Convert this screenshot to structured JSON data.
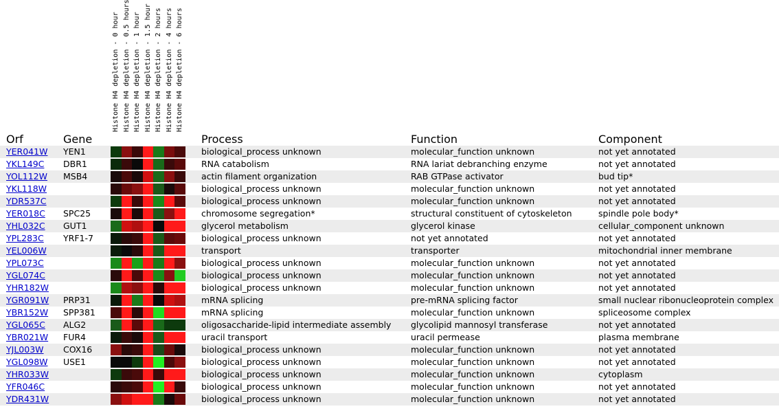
{
  "headers": {
    "orf": "Orf",
    "gene": "Gene",
    "process": "Process",
    "function": "Function",
    "component": "Component"
  },
  "conditions": [
    "Histone H4 depletion - 0 hour",
    "Histone H4 depletion - 0.5 hours",
    "Histone H4 depletion - 1 hour",
    "Histone H4 depletion - 1.5 hour",
    "Histone H4 depletion - 2 hours",
    "Histone H4 depletion - 4 hours",
    "Histone H4 depletion - 6 hours"
  ],
  "rows": [
    {
      "orf": "YER041W",
      "gene": "YEN1",
      "process": "biological_process unknown",
      "function": "molecular_function unknown",
      "component": "not yet annotated",
      "heat": [
        "#0d3a0d",
        "#8a1010",
        "#3a0a0a",
        "#ff1a1a",
        "#1a7a1a",
        "#7a0d0d",
        "#4a0a0a"
      ]
    },
    {
      "orf": "YKL149C",
      "gene": "DBR1",
      "process": "RNA catabolism",
      "function": "RNA lariat debranching enzyme",
      "component": "not yet annotated",
      "heat": [
        "#0a2a0a",
        "#3a0a0a",
        "#0a0a0a",
        "#ff1a1a",
        "#1a6a1a",
        "#3a0a0a",
        "#5a0a0a"
      ]
    },
    {
      "orf": "YOL112W",
      "gene": "MSB4",
      "process": "actin filament organization",
      "function": "RAB GTPase activator",
      "component": "bud tip*",
      "heat": [
        "#1a0a0a",
        "#4a0a0a",
        "#1a0a0a",
        "#d01010",
        "#1a6a1a",
        "#8a1010",
        "#3a0a0a"
      ]
    },
    {
      "orf": "YKL118W",
      "gene": "",
      "process": "biological_process unknown",
      "function": "molecular_function unknown",
      "component": "not yet annotated",
      "heat": [
        "#2a0a0a",
        "#6a0a0a",
        "#8a1010",
        "#ff1a1a",
        "#1a5a1a",
        "#1a0a0a",
        "#5a0a0a"
      ]
    },
    {
      "orf": "YDR537C",
      "gene": "",
      "process": "biological_process unknown",
      "function": "molecular_function unknown",
      "component": "not yet annotated",
      "heat": [
        "#0d3a0d",
        "#ff1a1a",
        "#3a0a0a",
        "#ff1a1a",
        "#1a8a1a",
        "#ff1a1a",
        "#5a0a0a"
      ]
    },
    {
      "orf": "YER018C",
      "gene": "SPC25",
      "process": "chromosome segregation*",
      "function": "structural constituent of cytoskeleton",
      "component": "spindle pole body*",
      "heat": [
        "#1a0a0a",
        "#ff1a1a",
        "#1a0a0a",
        "#ff1a1a",
        "#1a5a1a",
        "#8a1010",
        "#ff1a1a"
      ]
    },
    {
      "orf": "YHL032C",
      "gene": "GUT1",
      "process": "glycerol metabolism",
      "function": "glycerol kinase",
      "component": "cellular_component unknown",
      "heat": [
        "#1a6a1a",
        "#d01010",
        "#b01010",
        "#ff1a1a",
        "#0a0a0a",
        "#ff1a1a",
        "#ff1a1a"
      ]
    },
    {
      "orf": "YPL283C",
      "gene": "YRF1-7",
      "process": "biological_process unknown",
      "function": "not yet annotated",
      "component": "not yet annotated",
      "heat": [
        "#0a1a0a",
        "#2a0a0a",
        "#3a0a0a",
        "#ff1a1a",
        "#1a5a1a",
        "#5a0a0a",
        "#6a0a0a"
      ]
    },
    {
      "orf": "YEL006W",
      "gene": "",
      "process": "transport",
      "function": "transporter",
      "component": "mitochondrial inner membrane",
      "heat": [
        "#0a1a0a",
        "#0a0a0a",
        "#2a0a0a",
        "#ff1a1a",
        "#1a5a1a",
        "#ff1a1a",
        "#ff1a1a"
      ]
    },
    {
      "orf": "YPL073C",
      "gene": "",
      "process": "biological_process unknown",
      "function": "molecular_function unknown",
      "component": "not yet annotated",
      "heat": [
        "#1a8a1a",
        "#ff1a1a",
        "#1aa01a",
        "#ff1a1a",
        "#1a7a1a",
        "#ff1a1a",
        "#8a1010"
      ]
    },
    {
      "orf": "YGL074C",
      "gene": "",
      "process": "biological_process unknown",
      "function": "molecular_function unknown",
      "component": "not yet annotated",
      "heat": [
        "#2a0a0a",
        "#ff1a1a",
        "#4a0a0a",
        "#ff1a1a",
        "#1a8a1a",
        "#8a1010",
        "#22cc22"
      ]
    },
    {
      "orf": "YHR182W",
      "gene": "",
      "process": "biological_process unknown",
      "function": "molecular_function unknown",
      "component": "not yet annotated",
      "heat": [
        "#1a8a1a",
        "#b01010",
        "#8a1010",
        "#ff1a1a",
        "#2a0a0a",
        "#ff1a1a",
        "#ff1a1a"
      ]
    },
    {
      "orf": "YGR091W",
      "gene": "PRP31",
      "process": "mRNA splicing",
      "function": "pre-mRNA splicing factor",
      "component": "small nuclear ribonucleoprotein complex",
      "heat": [
        "#0a1a0a",
        "#ff1a1a",
        "#1a7a1a",
        "#ff1a1a",
        "#0a0a0a",
        "#d01010",
        "#b01010"
      ]
    },
    {
      "orf": "YBR152W",
      "gene": "SPP381",
      "process": "mRNA splicing",
      "function": "molecular_function unknown",
      "component": "spliceosome complex",
      "heat": [
        "#4a0a0a",
        "#ff1a1a",
        "#2a0a0a",
        "#ff1a1a",
        "#22dd22",
        "#ff1a1a",
        "#ff1a1a"
      ]
    },
    {
      "orf": "YGL065C",
      "gene": "ALG2",
      "process": "oligosaccharide-lipid intermediate assembly",
      "function": "glycolipid mannosyl transferase",
      "component": "not yet annotated",
      "heat": [
        "#1a5a1a",
        "#ff1a1a",
        "#5a0a0a",
        "#ff1a1a",
        "#1a6a1a",
        "#0d3a0d",
        "#0d3a0d"
      ]
    },
    {
      "orf": "YBR021W",
      "gene": "FUR4",
      "process": "uracil transport",
      "function": "uracil permease",
      "component": "plasma membrane",
      "heat": [
        "#0a1a0a",
        "#3a0a0a",
        "#1a0a0a",
        "#ff1a1a",
        "#1a5a1a",
        "#ff1a1a",
        "#ff1a1a"
      ]
    },
    {
      "orf": "YJL003W",
      "gene": "COX16",
      "process": "biological_process unknown",
      "function": "molecular_function unknown",
      "component": "not yet annotated",
      "heat": [
        "#8a1010",
        "#2a0a0a",
        "#3a0a0a",
        "#ff1a1a",
        "#1a4a1a",
        "#6a0a0a",
        "#1a0a0a"
      ]
    },
    {
      "orf": "YGL098W",
      "gene": "USE1",
      "process": "biological_process unknown",
      "function": "molecular_function unknown",
      "component": "not yet annotated",
      "heat": [
        "#0a0a0a",
        "#0a0a0a",
        "#0d3a0d",
        "#ff1a1a",
        "#22ee22",
        "#4a0a0a",
        "#8a1010"
      ]
    },
    {
      "orf": "YHR033W",
      "gene": "",
      "process": "biological_process unknown",
      "function": "molecular_function unknown",
      "component": "cytoplasm",
      "heat": [
        "#0d3a0d",
        "#3a0a0a",
        "#4a0a0a",
        "#ff1a1a",
        "#3a0a0a",
        "#ff1a1a",
        "#ff1a1a"
      ]
    },
    {
      "orf": "YFR046C",
      "gene": "",
      "process": "biological_process unknown",
      "function": "molecular_function unknown",
      "component": "not yet annotated",
      "heat": [
        "#2a0a0a",
        "#3a0a0a",
        "#4a0a0a",
        "#ff1a1a",
        "#22ee22",
        "#ff1a1a",
        "#3a0a0a"
      ]
    },
    {
      "orf": "YDR431W",
      "gene": "",
      "process": "biological_process unknown",
      "function": "molecular_function unknown",
      "component": "not yet annotated",
      "heat": [
        "#8a1010",
        "#d01010",
        "#ff1a1a",
        "#ff1a1a",
        "#1a7a1a",
        "#1a0a0a",
        "#6a0a0a"
      ]
    }
  ]
}
